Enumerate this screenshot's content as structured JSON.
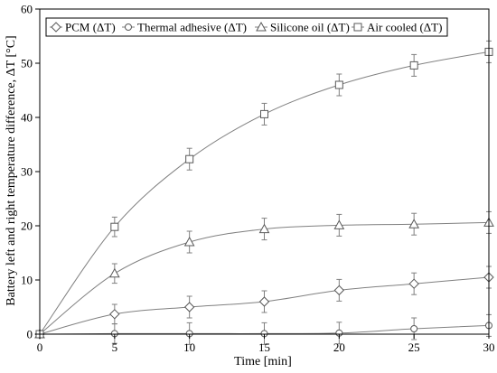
{
  "chart_data": {
    "type": "line",
    "xlabel": "Time [min]",
    "ylabel": "Battery left and right temperature difference, ΔT [°C]",
    "x": [
      0,
      5,
      10,
      15,
      20,
      25,
      30
    ],
    "xlim": [
      0,
      30
    ],
    "ylim": [
      0,
      60
    ],
    "xticks": [
      0,
      5,
      10,
      15,
      20,
      25,
      30
    ],
    "yticks": [
      0,
      10,
      20,
      30,
      40,
      50,
      60
    ],
    "grid": false,
    "legend_position": "top",
    "series": [
      {
        "name": "PCM (ΔT)",
        "marker": "diamond",
        "values": [
          0,
          3.7,
          5.0,
          6.0,
          8.1,
          9.3,
          10.5
        ],
        "err": [
          0,
          1.8,
          2.0,
          2.0,
          2.0,
          2.0,
          2.0
        ]
      },
      {
        "name": "Thermal adhesive (ΔT)",
        "marker": "circle",
        "values": [
          0,
          0.1,
          0.1,
          0.1,
          0.2,
          1.0,
          1.6
        ],
        "err": [
          0,
          1.8,
          2.0,
          2.0,
          2.0,
          2.0,
          2.0
        ]
      },
      {
        "name": "Silicone oil (ΔT)",
        "marker": "triangle",
        "values": [
          0,
          11.2,
          17.0,
          19.4,
          20.1,
          20.3,
          20.6
        ],
        "err": [
          0,
          1.8,
          2.0,
          2.0,
          2.0,
          2.0,
          2.0
        ]
      },
      {
        "name": "Air cooled (ΔT)",
        "marker": "square",
        "values": [
          0,
          19.8,
          32.3,
          40.6,
          46.0,
          49.6,
          52.1
        ],
        "err": [
          0,
          1.8,
          2.0,
          2.0,
          2.0,
          2.0,
          2.0
        ]
      }
    ],
    "colors": {
      "line": "#808080",
      "axis": "#000000",
      "marker_fill": "#ffffff",
      "marker_stroke": "#595959"
    }
  }
}
